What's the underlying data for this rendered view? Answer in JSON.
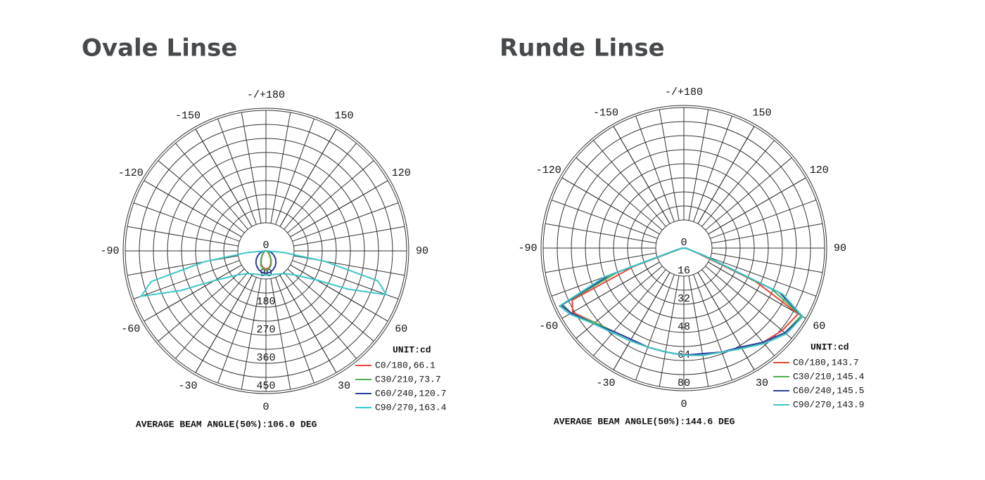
{
  "chart_data": [
    {
      "type": "polar",
      "title": "Ovale Linse",
      "thetaticks": [
        {
          "value": 180,
          "label": "-/+180"
        },
        150,
        120,
        90,
        60,
        30,
        0,
        -30,
        -60,
        -90,
        -120,
        -150
      ],
      "rlim": [
        0,
        450
      ],
      "rticks": [
        0,
        90,
        180,
        270,
        360,
        450
      ],
      "x": [
        -90,
        -85,
        -80,
        -75,
        -70,
        -65,
        -60,
        -50,
        -40,
        -30,
        -20,
        -10,
        0,
        10,
        20,
        30,
        40,
        50,
        60,
        65,
        70,
        75,
        80,
        85,
        90
      ],
      "legend_title": "UNIT:cd",
      "series": [
        {
          "name": "C0/180,66.1",
          "color": "#e8453c",
          "values": [
            0,
            1,
            2,
            3,
            4,
            5,
            6,
            10,
            18,
            30,
            45,
            55,
            58,
            55,
            45,
            30,
            18,
            10,
            6,
            5,
            4,
            3,
            2,
            1,
            0
          ]
        },
        {
          "name": "C30/210,73.7",
          "color": "#4caf50",
          "values": [
            0,
            1,
            2,
            3,
            4,
            5,
            7,
            12,
            20,
            33,
            48,
            58,
            62,
            58,
            48,
            33,
            20,
            12,
            7,
            5,
            4,
            3,
            2,
            1,
            0
          ]
        },
        {
          "name": "C60/240,120.7",
          "color": "#2b3f9e",
          "values": [
            0,
            5,
            10,
            15,
            20,
            25,
            30,
            40,
            50,
            58,
            65,
            70,
            72,
            70,
            65,
            58,
            50,
            40,
            30,
            25,
            20,
            15,
            10,
            5,
            0
          ]
        },
        {
          "name": "C90/270,163.4",
          "color": "#3cc6c8",
          "values": [
            0,
            60,
            200,
            380,
            425,
            300,
            190,
            120,
            95,
            85,
            80,
            78,
            78,
            78,
            80,
            85,
            95,
            120,
            185,
            290,
            410,
            370,
            190,
            55,
            0
          ]
        }
      ],
      "annotation": "AVERAGE BEAM ANGLE(50%):106.0 DEG"
    },
    {
      "type": "polar",
      "title": "Runde Linse",
      "thetaticks": [
        {
          "value": 180,
          "label": "-/+180"
        },
        150,
        120,
        90,
        60,
        30,
        0,
        -30,
        -60,
        -90,
        -120,
        -150
      ],
      "rlim": [
        0,
        80
      ],
      "rticks": [
        0,
        16,
        32,
        48,
        64,
        80
      ],
      "x": [
        -90,
        -85,
        -80,
        -75,
        -70,
        -65,
        -60,
        -50,
        -40,
        -30,
        -20,
        -10,
        0,
        10,
        20,
        30,
        40,
        50,
        60,
        65,
        70,
        75,
        80,
        85,
        90
      ],
      "legend_title": "UNIT:cd",
      "series": [
        {
          "name": "C0/180,143.7",
          "color": "#e8453c",
          "values": [
            0,
            1,
            2,
            3,
            30,
            70,
            73,
            66,
            62,
            60,
            60,
            60,
            61,
            62,
            63,
            66,
            70,
            73,
            75,
            45,
            8,
            3,
            2,
            1,
            0
          ]
        },
        {
          "name": "C30/210,145.4",
          "color": "#4caf50",
          "values": [
            0,
            1,
            2,
            4,
            40,
            76,
            74,
            66,
            62,
            60,
            60,
            60,
            61,
            62,
            63,
            66,
            70,
            75,
            77,
            55,
            10,
            3,
            2,
            1,
            0
          ]
        },
        {
          "name": "C60/240,145.5",
          "color": "#2b3f9e",
          "values": [
            0,
            1,
            2,
            5,
            45,
            77,
            74,
            67,
            62,
            60,
            60,
            60,
            61,
            61,
            63,
            65,
            70,
            75,
            78,
            60,
            12,
            3,
            2,
            1,
            0
          ]
        },
        {
          "name": "C90/270,143.9",
          "color": "#3cc6c8",
          "values": [
            0,
            1,
            2,
            5,
            48,
            78,
            75,
            67,
            63,
            61,
            60,
            60,
            61,
            62,
            63,
            66,
            71,
            76,
            78,
            62,
            12,
            3,
            2,
            1,
            0
          ]
        }
      ],
      "annotation": "AVERAGE BEAM ANGLE(50%):144.6 DEG"
    }
  ]
}
